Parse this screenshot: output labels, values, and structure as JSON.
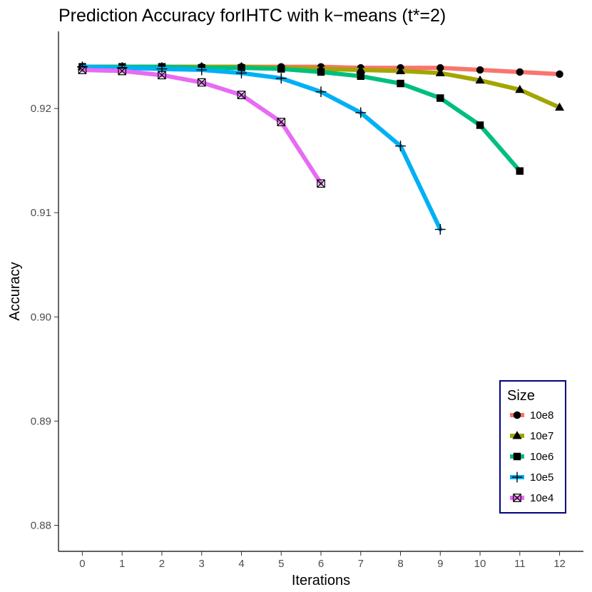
{
  "chart_data": {
    "type": "line",
    "title": "Prediction Accuracy forIHTC with k−means (t*=2)",
    "xlabel": "Iterations",
    "ylabel": "Accuracy",
    "x_ticks": [
      0,
      1,
      2,
      3,
      4,
      5,
      6,
      7,
      8,
      9,
      10,
      11,
      12
    ],
    "x_tick_labels": [
      "0",
      "1",
      "2",
      "3",
      "4",
      "5",
      "6",
      "7",
      "8",
      "9",
      "10",
      "11",
      "12"
    ],
    "y_ticks": [
      0.88,
      0.89,
      0.9,
      0.91,
      0.92
    ],
    "y_tick_labels": [
      "0.88",
      "0.89",
      "0.90",
      "0.91",
      "0.92"
    ],
    "xlim": [
      -0.6,
      12.6
    ],
    "ylim": [
      0.8775,
      0.9274
    ],
    "grid": false,
    "legend": {
      "title": "Size",
      "placement": "bottom-right"
    },
    "series": [
      {
        "name": "10e8",
        "color": "#F8766D",
        "marker": "circle",
        "x": [
          0,
          1,
          2,
          3,
          4,
          5,
          6,
          7,
          8,
          9,
          10,
          11,
          12
        ],
        "values": [
          0.924,
          0.924,
          0.924,
          0.924,
          0.924,
          0.924,
          0.924,
          0.9239,
          0.9239,
          0.9239,
          0.9237,
          0.9235,
          0.9233
        ]
      },
      {
        "name": "10e7",
        "color": "#A3A500",
        "marker": "triangle",
        "x": [
          0,
          1,
          2,
          3,
          4,
          5,
          6,
          7,
          8,
          9,
          10,
          11,
          12
        ],
        "values": [
          0.924,
          0.924,
          0.924,
          0.924,
          0.924,
          0.9239,
          0.9238,
          0.9237,
          0.9236,
          0.9234,
          0.9227,
          0.9218,
          0.9201
        ]
      },
      {
        "name": "10e6",
        "color": "#00BF7D",
        "marker": "square",
        "x": [
          0,
          1,
          2,
          3,
          4,
          5,
          6,
          7,
          8,
          9,
          10,
          11
        ],
        "values": [
          0.924,
          0.924,
          0.924,
          0.9239,
          0.9239,
          0.9238,
          0.9235,
          0.9231,
          0.9224,
          0.921,
          0.9184,
          0.914
        ]
      },
      {
        "name": "10e5",
        "color": "#00B0F6",
        "marker": "plus",
        "x": [
          0,
          1,
          2,
          3,
          4,
          5,
          6,
          7,
          8,
          9
        ],
        "values": [
          0.924,
          0.9239,
          0.9238,
          0.9237,
          0.9234,
          0.9229,
          0.9216,
          0.9196,
          0.9164,
          0.9084
        ]
      },
      {
        "name": "10e4",
        "color": "#E76BF3",
        "marker": "boxx",
        "x": [
          0,
          1,
          2,
          3,
          4,
          5,
          6
        ],
        "values": [
          0.9237,
          0.9236,
          0.9232,
          0.9225,
          0.9213,
          0.9187,
          0.9128
        ]
      }
    ]
  }
}
